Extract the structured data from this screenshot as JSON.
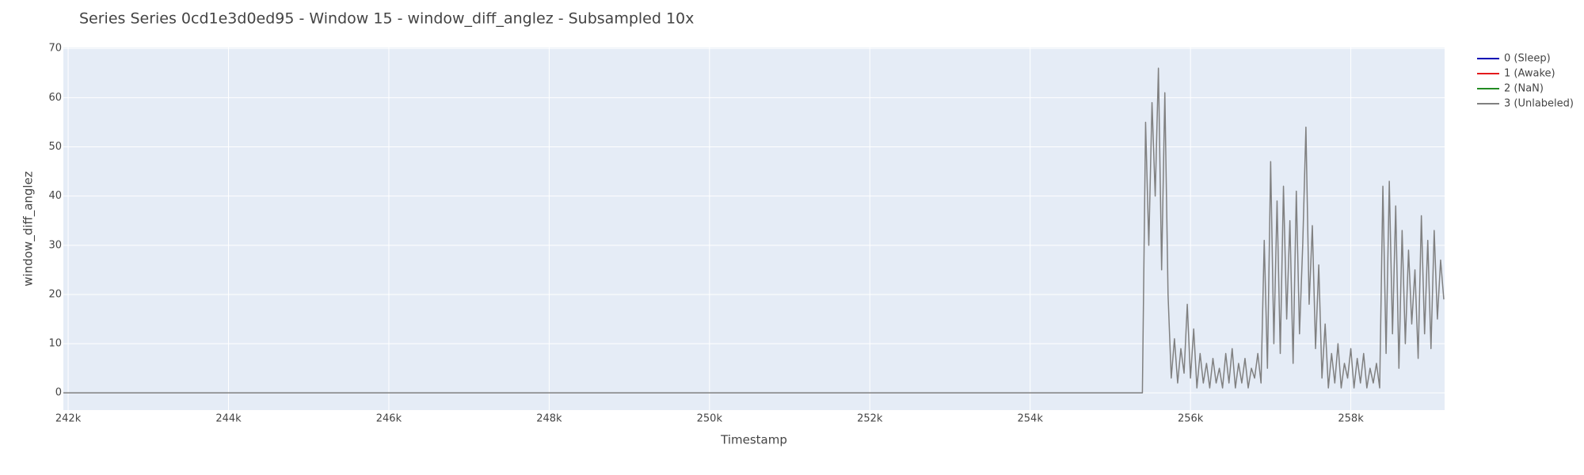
{
  "chart_data": {
    "type": "line",
    "title": "Series Series 0cd1e3d0ed95 - Window 15 - window_diff_anglez - Subsampled 10x",
    "x_label": "Timestamp",
    "y_label": "window_diff_anglez",
    "xlim": [
      241940,
      259170
    ],
    "ylim": [
      -3.5,
      70.2
    ],
    "xticks": [
      {
        "value": 242000,
        "label": "242k"
      },
      {
        "value": 244000,
        "label": "244k"
      },
      {
        "value": 246000,
        "label": "246k"
      },
      {
        "value": 248000,
        "label": "248k"
      },
      {
        "value": 250000,
        "label": "250k"
      },
      {
        "value": 252000,
        "label": "252k"
      },
      {
        "value": 254000,
        "label": "254k"
      },
      {
        "value": 256000,
        "label": "256k"
      },
      {
        "value": 258000,
        "label": "258k"
      }
    ],
    "yticks": [
      0,
      10,
      20,
      30,
      40,
      50,
      60,
      70
    ],
    "grid": true,
    "legend": "outside-right",
    "series": [
      {
        "name": "0 (Sleep)",
        "color": "#0000b4",
        "x": [],
        "values": []
      },
      {
        "name": "1 (Awake)",
        "color": "#e31a1c",
        "x": [],
        "values": []
      },
      {
        "name": "2 (NaN)",
        "color": "#228b22",
        "x": [],
        "values": []
      },
      {
        "name": "3 (Unlabeled)",
        "color": "#808080",
        "x": [
          241940,
          255400,
          255440,
          255480,
          255520,
          255560,
          255600,
          255640,
          255680,
          255720,
          255760,
          255800,
          255840,
          255880,
          255920,
          255960,
          256000,
          256040,
          256080,
          256120,
          256160,
          256200,
          256240,
          256280,
          256320,
          256360,
          256400,
          256440,
          256480,
          256520,
          256560,
          256600,
          256640,
          256680,
          256720,
          256760,
          256800,
          256840,
          256880,
          256920,
          256960,
          257000,
          257040,
          257080,
          257120,
          257160,
          257200,
          257240,
          257280,
          257320,
          257360,
          257400,
          257440,
          257480,
          257520,
          257560,
          257600,
          257640,
          257680,
          257720,
          257760,
          257800,
          257840,
          257880,
          257920,
          257960,
          258000,
          258040,
          258080,
          258120,
          258160,
          258200,
          258240,
          258280,
          258320,
          258360,
          258400,
          258440,
          258480,
          258520,
          258560,
          258600,
          258640,
          258680,
          258720,
          258760,
          258800,
          258840,
          258880,
          258920,
          258960,
          259000,
          259040,
          259080,
          259120,
          259160
        ],
        "values": [
          0,
          0,
          55,
          30,
          59,
          40,
          66,
          25,
          61,
          20,
          3,
          11,
          2,
          9,
          4,
          18,
          3,
          13,
          1,
          8,
          2,
          6,
          1,
          7,
          2,
          5,
          1,
          8,
          2,
          9,
          1,
          6,
          2,
          7,
          1,
          5,
          3,
          8,
          2,
          31,
          5,
          47,
          10,
          39,
          8,
          42,
          15,
          35,
          6,
          41,
          12,
          30,
          54,
          18,
          34,
          9,
          26,
          3,
          14,
          1,
          8,
          2,
          10,
          1,
          6,
          3,
          9,
          1,
          7,
          2,
          8,
          1,
          5,
          2,
          6,
          1,
          42,
          8,
          43,
          12,
          38,
          5,
          33,
          10,
          29,
          14,
          25,
          7,
          36,
          12,
          31,
          9,
          33,
          15,
          27,
          19
        ]
      }
    ]
  }
}
